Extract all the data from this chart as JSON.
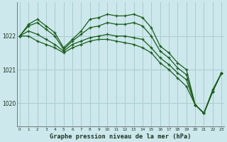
{
  "title": "Graphe pression niveau de la mer (hPa)",
  "bg_color": "#cce8ec",
  "grid_color": "#aaccd0",
  "line_color": "#1a5c1a",
  "series": [
    {
      "x": [
        0,
        1,
        2,
        3,
        4,
        5,
        6,
        7,
        8,
        9,
        10,
        11,
        12,
        13,
        14,
        15,
        16,
        17,
        18,
        19,
        20,
        21,
        22,
        23
      ],
      "y": [
        1022.0,
        1022.35,
        1022.5,
        1022.3,
        1022.1,
        1021.65,
        1021.9,
        1022.15,
        1022.5,
        1022.55,
        1022.65,
        1022.6,
        1022.6,
        1022.65,
        1022.55,
        1022.25,
        1021.7,
        1021.5,
        1021.2,
        1021.0,
        1019.95,
        1019.7,
        1020.4,
        1020.9
      ]
    },
    {
      "x": [
        0,
        1,
        2,
        3,
        4,
        5,
        6,
        7,
        8,
        9,
        10,
        11,
        12,
        13,
        14,
        15,
        16,
        17,
        18,
        19,
        20,
        21,
        22,
        23
      ],
      "y": [
        1022.0,
        1022.3,
        1022.4,
        1022.2,
        1022.0,
        1021.6,
        1021.85,
        1022.05,
        1022.25,
        1022.3,
        1022.4,
        1022.35,
        1022.35,
        1022.4,
        1022.3,
        1022.0,
        1021.55,
        1021.35,
        1021.05,
        1020.85,
        1019.95,
        1019.7,
        1020.35,
        1020.9
      ]
    },
    {
      "x": [
        0,
        1,
        2,
        3,
        4,
        5,
        6,
        7,
        8,
        9,
        10,
        11,
        12,
        13,
        14,
        15,
        16,
        17,
        18,
        19,
        20,
        21,
        22,
        23
      ],
      "y": [
        1022.0,
        1022.15,
        1022.05,
        1021.9,
        1021.75,
        1021.55,
        1021.75,
        1021.85,
        1021.95,
        1022.0,
        1022.05,
        1022.0,
        1022.0,
        1021.95,
        1021.9,
        1021.65,
        1021.35,
        1021.15,
        1020.9,
        1020.7,
        1019.95,
        1019.7,
        1020.35,
        1020.9
      ]
    },
    {
      "x": [
        0,
        1,
        2,
        3,
        4,
        5,
        6,
        7,
        8,
        9,
        10,
        11,
        12,
        13,
        14,
        15,
        16,
        17,
        18,
        19,
        20,
        21,
        22,
        23
      ],
      "y": [
        1022.0,
        1022.0,
        1021.85,
        1021.75,
        1021.65,
        1021.5,
        1021.65,
        1021.75,
        1021.85,
        1021.9,
        1021.9,
        1021.85,
        1021.8,
        1021.75,
        1021.65,
        1021.5,
        1021.2,
        1021.0,
        1020.75,
        1020.5,
        1019.95,
        1019.7,
        1020.35,
        1020.9
      ]
    }
  ],
  "yticks": [
    1020,
    1021,
    1022
  ],
  "xtick_labels": [
    "0",
    "1",
    "2",
    "3",
    "4",
    "5",
    "6",
    "7",
    "8",
    "9",
    "10",
    "11",
    "12",
    "13",
    "14",
    "15",
    "16",
    "17",
    "18",
    "19",
    "20",
    "21",
    "22",
    "23"
  ],
  "xticks": [
    0,
    1,
    2,
    3,
    4,
    5,
    6,
    7,
    8,
    9,
    10,
    11,
    12,
    13,
    14,
    15,
    16,
    17,
    18,
    19,
    20,
    21,
    22,
    23
  ],
  "ylim": [
    1019.3,
    1023.0
  ],
  "xlim": [
    -0.3,
    23.3
  ]
}
